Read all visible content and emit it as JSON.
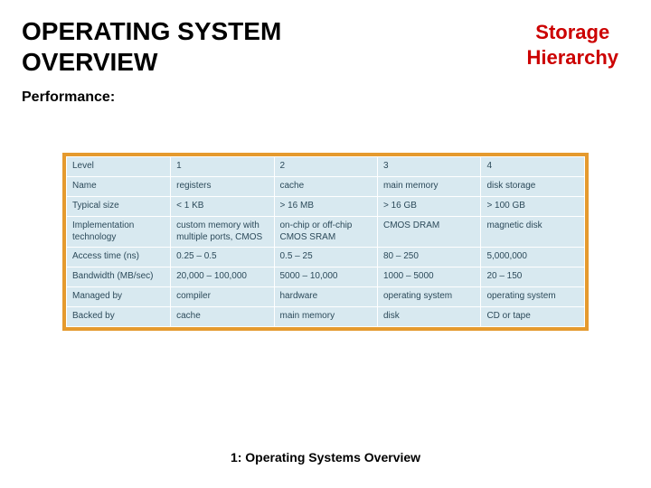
{
  "header": {
    "main_title_line1": "OPERATING SYSTEM",
    "main_title_line2": "OVERVIEW",
    "sub_title_line1": "Storage",
    "sub_title_line2": "Hierarchy"
  },
  "section_label": "Performance:",
  "table": {
    "border_color": "#e59a2e",
    "cell_bg": "#d8e9f0",
    "cell_border": "#ffffff",
    "text_color": "#2c4a5a",
    "font_size": 10,
    "row_headers": [
      "Level",
      "Name",
      "Typical size",
      "Implementation technology",
      "Access time (ns)",
      "Bandwidth (MB/sec)",
      "Managed by",
      "Backed by"
    ],
    "columns": [
      {
        "level": "1",
        "name": "registers",
        "typical_size": "< 1 KB",
        "impl": "custom memory with multiple ports, CMOS",
        "access_time": "0.25 – 0.5",
        "bandwidth": "20,000 – 100,000",
        "managed_by": "compiler",
        "backed_by": "cache"
      },
      {
        "level": "2",
        "name": "cache",
        "typical_size": "> 16 MB",
        "impl": "on-chip or off-chip CMOS SRAM",
        "access_time": "0.5 – 25",
        "bandwidth": "5000 – 10,000",
        "managed_by": "hardware",
        "backed_by": "main memory"
      },
      {
        "level": "3",
        "name": "main memory",
        "typical_size": "> 16 GB",
        "impl": "CMOS DRAM",
        "access_time": "80 – 250",
        "bandwidth": "1000 – 5000",
        "managed_by": "operating system",
        "backed_by": "disk"
      },
      {
        "level": "4",
        "name": "disk storage",
        "typical_size": "> 100 GB",
        "impl": "magnetic disk",
        "access_time": "5,000,000",
        "bandwidth": "20 – 150",
        "managed_by": "operating system",
        "backed_by": "CD or tape"
      }
    ]
  },
  "footer": "1: Operating Systems Overview",
  "colors": {
    "title_black": "#000000",
    "subtitle_red": "#cc0000",
    "page_bg": "#ffffff"
  }
}
